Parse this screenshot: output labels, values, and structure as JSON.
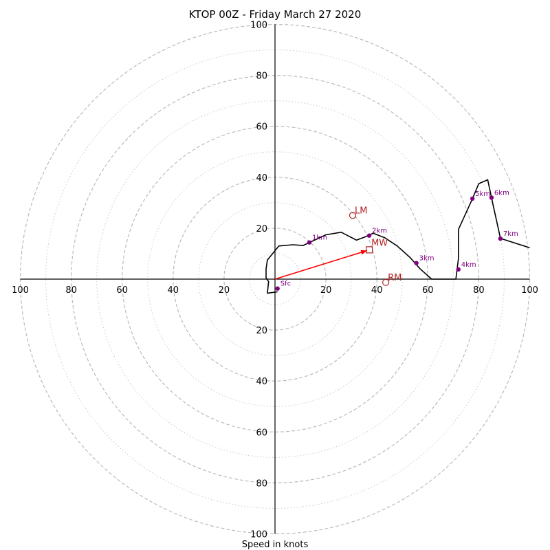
{
  "chart_data": {
    "type": "hodograph",
    "title": "KTOP 00Z - Friday March 27 2020",
    "xlabel": "Speed in knots",
    "axis_range": [
      -100,
      100
    ],
    "ring_major": [
      20,
      40,
      60,
      80,
      100
    ],
    "ring_minor": [
      10,
      30,
      50,
      70,
      90
    ],
    "tick_labels": {
      "left": [
        "100",
        "80",
        "60",
        "40",
        "20"
      ],
      "right": [
        "20",
        "40",
        "60",
        "80",
        "100"
      ],
      "top": [
        "20",
        "40",
        "60",
        "80",
        "100"
      ],
      "bottom": [
        "20",
        "40",
        "60",
        "80",
        "100"
      ]
    },
    "trace": {
      "color": "#000000",
      "points": [
        [
          1,
          -5
        ],
        [
          -3,
          -5.5
        ],
        [
          -2.5,
          -1
        ],
        [
          -3.5,
          0.5
        ],
        [
          -3.5,
          4
        ],
        [
          -3,
          7.5
        ],
        [
          1.5,
          13
        ],
        [
          7,
          13.5
        ],
        [
          11,
          13.2
        ],
        [
          14,
          14.6
        ],
        [
          20,
          17.4
        ],
        [
          26,
          18.4
        ],
        [
          32,
          15.3
        ],
        [
          36.5,
          17
        ],
        [
          38.5,
          18
        ],
        [
          43,
          16.3
        ],
        [
          48,
          13
        ],
        [
          53,
          8.5
        ],
        [
          57,
          4
        ],
        [
          61.5,
          0
        ],
        [
          71,
          0
        ],
        [
          71.5,
          4
        ],
        [
          72,
          8
        ],
        [
          72,
          19.5
        ],
        [
          77.5,
          31.5
        ],
        [
          80,
          37.5
        ],
        [
          83.5,
          39
        ],
        [
          85,
          32
        ],
        [
          88.5,
          16
        ],
        [
          100,
          12.3
        ]
      ]
    },
    "height_markers": [
      {
        "label": "Sfc",
        "u": 1,
        "v": -3.7
      },
      {
        "label": "1km",
        "u": 13.5,
        "v": 14.4
      },
      {
        "label": "2km",
        "u": 37,
        "v": 17.1
      },
      {
        "label": "3km",
        "u": 55.5,
        "v": 6.3
      },
      {
        "label": "4km",
        "u": 72,
        "v": 3.8
      },
      {
        "label": "5km",
        "u": 77.5,
        "v": 31.6
      },
      {
        "label": "6km",
        "u": 85,
        "v": 32
      },
      {
        "label": "7km",
        "u": 88.5,
        "v": 15.9
      }
    ],
    "storm_motion": {
      "LM": {
        "label": "LM",
        "u": 30.5,
        "v": 25
      },
      "RM": {
        "label": "RM",
        "u": 43.5,
        "v": -1.3
      },
      "MW": {
        "label": "MW",
        "u": 37,
        "v": 11.5
      }
    },
    "colors": {
      "trace": "#000000",
      "height_marker": "#800080",
      "storm_motion": "#b22222",
      "mean_wind_arrow": "#ff0000",
      "grid": "#bbbbbb",
      "axes": "#000000"
    }
  }
}
